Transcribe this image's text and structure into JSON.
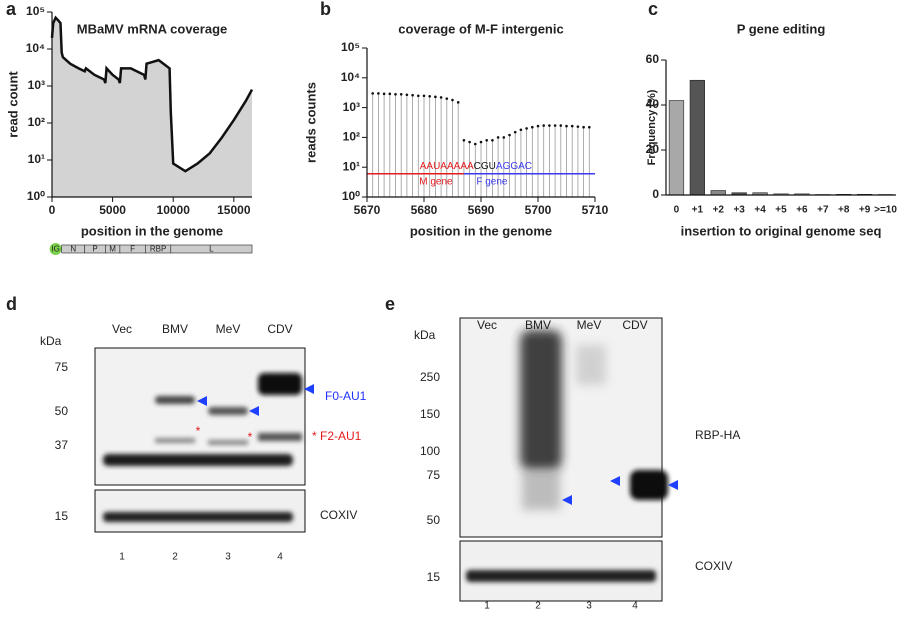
{
  "chart_data": [
    {
      "type": "area",
      "panel": "a",
      "title": "MBaMV mRNA coverage",
      "x_label": "position in the genome",
      "y_label": "read count",
      "log_y": true,
      "color": "#d3d3d3",
      "line_color": "#111111",
      "x": [
        0,
        100,
        300,
        500,
        700,
        800,
        900,
        1500,
        2200,
        2700,
        2800,
        3500,
        4300,
        4400,
        4500,
        5000,
        5500,
        5600,
        5700,
        6500,
        7600,
        7700,
        7800,
        8800,
        9700,
        9800,
        10000,
        11000,
        12000,
        13000,
        14000,
        15000,
        16000,
        16500
      ],
      "values": [
        20000,
        50000,
        70000,
        60000,
        50000,
        8000,
        6000,
        4000,
        3000,
        2500,
        3000,
        2000,
        1500,
        1200,
        3000,
        2000,
        1500,
        1200,
        3000,
        3000,
        2000,
        1500,
        4000,
        5000,
        3000,
        200,
        8,
        5,
        8,
        15,
        40,
        120,
        400,
        800
      ],
      "xlim": [
        0,
        16500
      ],
      "xticks": [
        0,
        5000,
        10000,
        15000
      ],
      "ylim": [
        1,
        100000
      ],
      "yticks": [
        {
          "value": 1,
          "label": "10⁰"
        },
        {
          "value": 10,
          "label": "10¹"
        },
        {
          "value": 100,
          "label": "10²"
        },
        {
          "value": 1000,
          "label": "10³"
        },
        {
          "value": 10000,
          "label": "10⁴"
        },
        {
          "value": 100000,
          "label": "10⁵"
        }
      ],
      "genes": [
        {
          "name": "IG",
          "start": 0,
          "end": 600,
          "color": "#7ccf4a"
        },
        {
          "name": "N",
          "start": 800,
          "end": 2700,
          "color": "#cccccc"
        },
        {
          "name": "P",
          "start": 2700,
          "end": 4400,
          "color": "#cccccc"
        },
        {
          "name": "M",
          "start": 4400,
          "end": 5600,
          "color": "#cccccc"
        },
        {
          "name": "F",
          "start": 5600,
          "end": 7700,
          "color": "#cccccc"
        },
        {
          "name": "RBP",
          "start": 7700,
          "end": 9800,
          "color": "#cccccc"
        },
        {
          "name": "L",
          "start": 9800,
          "end": 16500,
          "color": "#cccccc"
        }
      ]
    },
    {
      "type": "lollipop",
      "panel": "b",
      "title": "coverage of M-F intergenic",
      "x_label": "position in the genome",
      "y_label": "reads counts",
      "log_y": true,
      "color": "#999999",
      "dot_color": "#111111",
      "x": [
        5671,
        5672,
        5673,
        5674,
        5675,
        5676,
        5677,
        5678,
        5679,
        5680,
        5681,
        5682,
        5683,
        5684,
        5685,
        5686,
        5687,
        5688,
        5689,
        5690,
        5691,
        5692,
        5693,
        5694,
        5695,
        5696,
        5697,
        5698,
        5699,
        5700,
        5701,
        5702,
        5703,
        5704,
        5705,
        5706,
        5707,
        5708,
        5709
      ],
      "values": [
        3000,
        3000,
        2900,
        2900,
        2800,
        2800,
        2700,
        2600,
        2500,
        2500,
        2400,
        2300,
        2200,
        2000,
        1800,
        1500,
        80,
        70,
        60,
        70,
        80,
        80,
        100,
        100,
        120,
        150,
        180,
        200,
        220,
        240,
        250,
        250,
        250,
        250,
        240,
        240,
        230,
        220,
        220
      ],
      "xlim": [
        5670,
        5710
      ],
      "xticks": [
        5670,
        5680,
        5690,
        5700,
        5710
      ],
      "ylim": [
        1,
        100000
      ],
      "yticks": [
        {
          "value": 1,
          "label": "10⁰"
        },
        {
          "value": 10,
          "label": "10¹"
        },
        {
          "value": 100,
          "label": "10²"
        },
        {
          "value": 1000,
          "label": "10³"
        },
        {
          "value": 10000,
          "label": "10⁴"
        },
        {
          "value": 100000,
          "label": "10⁵"
        }
      ],
      "segments": [
        {
          "name": "M gene",
          "color": "#e41a1c",
          "start": 5670,
          "end": 5687,
          "y": 6
        },
        {
          "name": "F gene",
          "color": "#3a3af0",
          "start": 5687,
          "end": 5710,
          "y": 6
        }
      ],
      "sequence": [
        {
          "text": "AAUAAAAA",
          "color": "#e41a1c"
        },
        {
          "text": "CGU",
          "color": "#111111"
        },
        {
          "text": "AGGAC",
          "color": "#3a3af0"
        }
      ]
    },
    {
      "type": "bar",
      "panel": "c",
      "title": "P gene editing",
      "x_label": "insertion to original genome seq",
      "y_label": "Frequency (%)",
      "categories": [
        "0",
        "+1",
        "+2",
        "+3",
        "+4",
        "+5",
        "+6",
        "+7",
        "+8",
        "+9",
        ">=10"
      ],
      "values": [
        42,
        51,
        2,
        1,
        1,
        0.5,
        0.5,
        0.2,
        0.3,
        0.3,
        0.2
      ],
      "colors": [
        "#a8a8a8",
        "#555555",
        "#888888",
        "#555555",
        "#888888",
        "#bbbbbb",
        "#bbbbbb",
        "#bbbbbb",
        "#bbbbbb",
        "#777777",
        "#bbbbbb"
      ],
      "ylim": [
        0,
        60
      ],
      "yticks": [
        0,
        20,
        40,
        60
      ]
    }
  ],
  "blots": [
    {
      "panel": "d",
      "unit": "kDa",
      "lanes": [
        "Vec",
        "BMV",
        "MeV",
        "CDV"
      ],
      "markers": [
        75,
        50,
        37
      ],
      "loading_marker": [
        15
      ],
      "lane_numbers": [
        1,
        2,
        3,
        4
      ],
      "f0_label": "F0-AU1",
      "f2_label": "* F2-AU1",
      "asterisk": "*",
      "loading_label": "COXIV"
    },
    {
      "panel": "e",
      "unit": "kDa",
      "lanes": [
        "Vec",
        "BMV",
        "MeV",
        "CDV"
      ],
      "markers": [
        250,
        150,
        100,
        75,
        50
      ],
      "loading_marker": [
        15
      ],
      "lane_numbers": [
        1,
        2,
        3,
        4
      ],
      "target_label": "RBP-HA",
      "loading_label": "COXIV"
    }
  ]
}
